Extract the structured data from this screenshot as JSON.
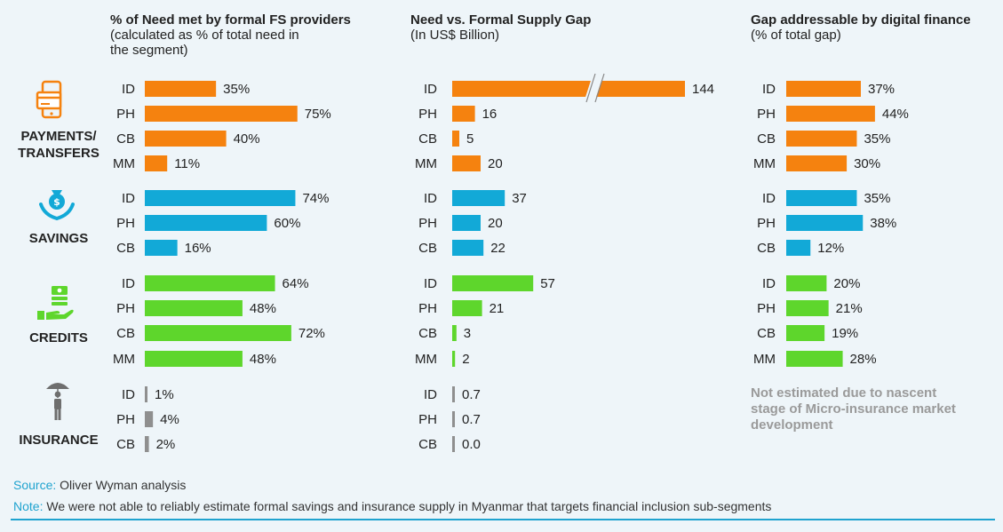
{
  "titles": {
    "panel1_main": "% of Need met by formal FS providers",
    "panel1_sub1": "(calculated as % of total need in",
    "panel1_sub2": "the segment)",
    "panel2_main": "Need vs. Formal Supply Gap",
    "panel2_sub": "(In US$ Billion)",
    "panel3_main": "Gap addressable by digital finance",
    "panel3_sub": "(% of total gap)"
  },
  "segments": {
    "payments": "PAYMENTS/\nTRANSFERS",
    "savings": "SAVINGS",
    "credits": "CREDITS",
    "insurance": "INSURANCE"
  },
  "icons": {
    "payments": "mobile-card-icon",
    "savings": "money-bag-hands-icon",
    "credits": "cash-hand-icon",
    "insurance": "umbrella-person-icon"
  },
  "note": "Not estimated due to nascent stage of Micro-insurance market development",
  "footer": {
    "source_label": "Source:",
    "source_text": " Oliver Wyman analysis",
    "note_label": "Note:",
    "note_text": " We were not able to reliably estimate formal savings and insurance supply in Myanmar that targets financial inclusion sub-segments"
  },
  "colors": {
    "payments": "#f5820f",
    "savings": "#12a9d7",
    "credits": "#5ed62c",
    "insurance": "#8f8f8f",
    "accent": "#1fa3cf"
  },
  "chart_data": [
    {
      "type": "bar",
      "title": "% of Need met by formal FS providers",
      "unit": "%",
      "groups": [
        {
          "segment": "payments",
          "rows": [
            {
              "label": "ID",
              "value": 35,
              "text": "35%"
            },
            {
              "label": "PH",
              "value": 75,
              "text": "75%"
            },
            {
              "label": "CB",
              "value": 40,
              "text": "40%"
            },
            {
              "label": "MM",
              "value": 11,
              "text": "11%"
            }
          ]
        },
        {
          "segment": "savings",
          "rows": [
            {
              "label": "ID",
              "value": 74,
              "text": "74%"
            },
            {
              "label": "PH",
              "value": 60,
              "text": "60%"
            },
            {
              "label": "CB",
              "value": 16,
              "text": "16%"
            }
          ]
        },
        {
          "segment": "credits",
          "rows": [
            {
              "label": "ID",
              "value": 64,
              "text": "64%"
            },
            {
              "label": "PH",
              "value": 48,
              "text": "48%"
            },
            {
              "label": "CB",
              "value": 72,
              "text": "72%"
            },
            {
              "label": "MM",
              "value": 48,
              "text": "48%"
            }
          ]
        },
        {
          "segment": "insurance",
          "rows": [
            {
              "label": "ID",
              "value": 1,
              "text": "1%"
            },
            {
              "label": "PH",
              "value": 4,
              "text": "4%"
            },
            {
              "label": "CB",
              "value": 2,
              "text": "2%"
            }
          ]
        }
      ]
    },
    {
      "type": "bar",
      "title": "Need vs. Formal Supply Gap",
      "unit": "US$ Billion",
      "axis_break": true,
      "groups": [
        {
          "segment": "payments",
          "rows": [
            {
              "label": "ID",
              "value": 144,
              "text": "144",
              "broken": true
            },
            {
              "label": "PH",
              "value": 16,
              "text": "16"
            },
            {
              "label": "CB",
              "value": 5,
              "text": "5"
            },
            {
              "label": "MM",
              "value": 20,
              "text": "20"
            }
          ]
        },
        {
          "segment": "savings",
          "rows": [
            {
              "label": "ID",
              "value": 37,
              "text": "37"
            },
            {
              "label": "PH",
              "value": 20,
              "text": "20"
            },
            {
              "label": "CB",
              "value": 22,
              "text": "22"
            }
          ]
        },
        {
          "segment": "credits",
          "rows": [
            {
              "label": "ID",
              "value": 57,
              "text": "57"
            },
            {
              "label": "PH",
              "value": 21,
              "text": "21"
            },
            {
              "label": "CB",
              "value": 3,
              "text": "3"
            },
            {
              "label": "MM",
              "value": 2,
              "text": "2"
            }
          ]
        },
        {
          "segment": "insurance",
          "rows": [
            {
              "label": "ID",
              "value": 0.7,
              "text": "0.7"
            },
            {
              "label": "PH",
              "value": 0.7,
              "text": "0.7"
            },
            {
              "label": "CB",
              "value": 0.0,
              "text": "0.0"
            }
          ]
        }
      ]
    },
    {
      "type": "bar",
      "title": "Gap addressable by digital finance",
      "unit": "%",
      "groups": [
        {
          "segment": "payments",
          "rows": [
            {
              "label": "ID",
              "value": 37,
              "text": "37%"
            },
            {
              "label": "PH",
              "value": 44,
              "text": "44%"
            },
            {
              "label": "CB",
              "value": 35,
              "text": "35%"
            },
            {
              "label": "MM",
              "value": 30,
              "text": "30%"
            }
          ]
        },
        {
          "segment": "savings",
          "rows": [
            {
              "label": "ID",
              "value": 35,
              "text": "35%"
            },
            {
              "label": "PH",
              "value": 38,
              "text": "38%"
            },
            {
              "label": "CB",
              "value": 12,
              "text": "12%"
            }
          ]
        },
        {
          "segment": "credits",
          "rows": [
            {
              "label": "ID",
              "value": 20,
              "text": "20%"
            },
            {
              "label": "PH",
              "value": 21,
              "text": "21%"
            },
            {
              "label": "CB",
              "value": 19,
              "text": "19%"
            },
            {
              "label": "MM",
              "value": 28,
              "text": "28%"
            }
          ]
        }
      ]
    }
  ]
}
